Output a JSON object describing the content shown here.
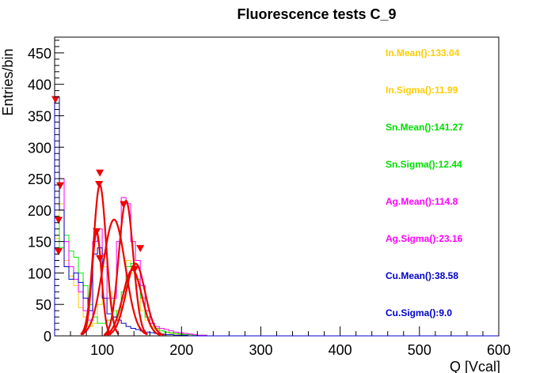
{
  "chart_data": {
    "type": "histogram",
    "title": "Fluorescence tests C_9",
    "xlabel": "Q [Vcal]",
    "ylabel": "Entries/bin",
    "xlim": [
      40,
      600
    ],
    "ylim": [
      0,
      475
    ],
    "xticks": [
      100,
      200,
      300,
      400,
      500,
      600
    ],
    "yticks": [
      0,
      50,
      100,
      150,
      200,
      250,
      300,
      350,
      400,
      450
    ],
    "xtick_labels": [
      "100",
      "200",
      "300",
      "400",
      "500",
      "600"
    ],
    "ytick_labels": [
      "0",
      "50",
      "100",
      "150",
      "200",
      "250",
      "300",
      "350",
      "400",
      "450"
    ],
    "grid": false,
    "series": [
      {
        "name": "In",
        "color": "#ffcc00",
        "x": [
          40,
          46,
          52,
          58,
          64,
          70,
          76,
          82,
          88,
          94,
          100,
          106,
          112,
          118,
          124,
          130,
          136,
          142,
          148,
          154,
          160,
          166,
          172,
          178,
          184,
          190,
          196,
          202,
          208,
          214,
          220,
          226,
          232,
          238,
          244,
          250
        ],
        "values": [
          155,
          210,
          120,
          95,
          80,
          45,
          30,
          15,
          20,
          50,
          110,
          70,
          40,
          30,
          60,
          120,
          100,
          80,
          40,
          25,
          15,
          10,
          8,
          6,
          4,
          3,
          2,
          2,
          1,
          1,
          1,
          0,
          0,
          0,
          0,
          0
        ]
      },
      {
        "name": "Sn",
        "color": "#00ee00",
        "x": [
          40,
          46,
          52,
          58,
          64,
          70,
          76,
          82,
          88,
          94,
          100,
          106,
          112,
          118,
          124,
          130,
          136,
          142,
          148,
          154,
          160,
          166,
          172,
          178,
          184,
          190,
          196,
          202,
          208,
          214,
          220,
          226,
          232,
          238,
          244,
          250
        ],
        "values": [
          190,
          140,
          160,
          135,
          125,
          100,
          80,
          50,
          30,
          20,
          20,
          25,
          30,
          40,
          70,
          110,
          115,
          90,
          60,
          30,
          20,
          12,
          8,
          6,
          5,
          4,
          3,
          2,
          2,
          1,
          1,
          1,
          0,
          0,
          0,
          0
        ]
      },
      {
        "name": "Ag",
        "color": "#ff00ff",
        "x": [
          40,
          46,
          52,
          58,
          64,
          70,
          76,
          82,
          88,
          94,
          100,
          106,
          112,
          118,
          124,
          130,
          136,
          142,
          148,
          154,
          160,
          166,
          172,
          178,
          184,
          190,
          196,
          202,
          208,
          214,
          220,
          226,
          232,
          238,
          244,
          250
        ],
        "values": [
          350,
          250,
          150,
          110,
          90,
          70,
          40,
          25,
          150,
          170,
          130,
          60,
          60,
          150,
          220,
          210,
          150,
          120,
          80,
          40,
          20,
          15,
          12,
          10,
          8,
          6,
          5,
          4,
          3,
          2,
          1,
          1,
          0,
          0,
          0,
          0
        ]
      },
      {
        "name": "Cu",
        "color": "#0000cc",
        "x": [
          40,
          46,
          52,
          58,
          64,
          70,
          76,
          82,
          88,
          94,
          100,
          106,
          112,
          118,
          124,
          130,
          136,
          142,
          148,
          154,
          160,
          166,
          172,
          178,
          184,
          190,
          196,
          202,
          208,
          214,
          220,
          226,
          232,
          238,
          244,
          250
        ],
        "values": [
          380,
          200,
          110,
          90,
          100,
          85,
          60,
          40,
          130,
          140,
          60,
          35,
          30,
          25,
          20,
          15,
          12,
          10,
          8,
          6,
          5,
          4,
          3,
          2,
          2,
          1,
          1,
          1,
          0,
          0,
          0,
          0,
          0,
          0,
          0,
          0
        ]
      }
    ],
    "fits": [
      {
        "color": "#ee0000",
        "amplitude": 240,
        "mean": 97,
        "sigma": 8
      },
      {
        "color": "#ee0000",
        "amplitude": 185,
        "mean": 115,
        "sigma": 14
      },
      {
        "color": "#ee0000",
        "amplitude": 215,
        "mean": 130,
        "sigma": 9
      },
      {
        "color": "#ee0000",
        "amplitude": 115,
        "mean": 142,
        "sigma": 12
      },
      {
        "color": "#ee0000",
        "amplitude": 165,
        "mean": 93,
        "sigma": 6
      },
      {
        "color": "#ee0000",
        "amplitude": 105,
        "mean": 138,
        "sigma": 12
      }
    ],
    "markers": [
      {
        "x": 41,
        "y": 375
      },
      {
        "x": 47,
        "y": 238
      },
      {
        "x": 45,
        "y": 183
      },
      {
        "x": 45,
        "y": 133
      },
      {
        "x": 97,
        "y": 258
      },
      {
        "x": 96,
        "y": 240
      },
      {
        "x": 93,
        "y": 165
      },
      {
        "x": 97,
        "y": 122
      },
      {
        "x": 127,
        "y": 208
      },
      {
        "x": 148,
        "y": 138
      },
      {
        "x": 141,
        "y": 105
      }
    ],
    "annotations": [
      {
        "text": "In.Mean():133.04",
        "color": "#ffcc00"
      },
      {
        "text": "In.Sigma():11.99",
        "color": "#ffcc00"
      },
      {
        "text": "Sn.Mean():141.27",
        "color": "#00dd00"
      },
      {
        "text": "Sn.Sigma():12.44",
        "color": "#00dd00"
      },
      {
        "text": "Ag.Mean():114.8",
        "color": "#ff00ff"
      },
      {
        "text": "Ag.Sigma():23.16",
        "color": "#ff00ff"
      },
      {
        "text": "Cu.Mean():38.58",
        "color": "#0000cc"
      },
      {
        "text": "Cu.Sigma():9.0",
        "color": "#0000cc"
      }
    ],
    "marker_color": "#ee0000"
  }
}
